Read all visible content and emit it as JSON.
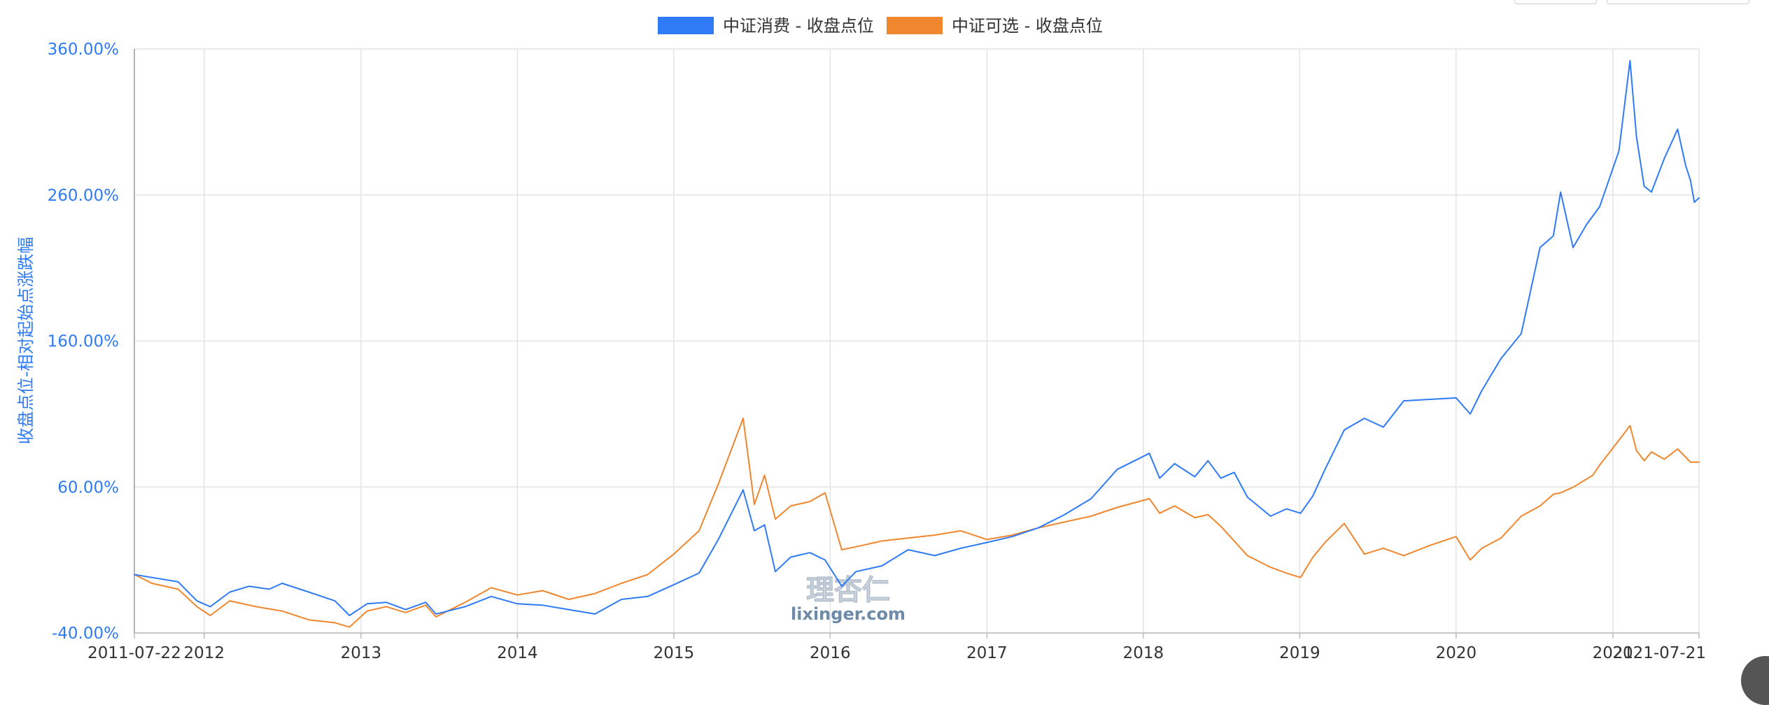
{
  "chart_data": {
    "type": "line",
    "title": "",
    "ylabel": "收盘点位-相对起始点涨跌幅",
    "xlabel": "",
    "y_unit": "%",
    "ylim": [
      -40,
      360
    ],
    "yticks": [
      "360.00%",
      "260.00%",
      "160.00%",
      "60.00%",
      "-40.00%"
    ],
    "yticks_values": [
      360,
      260,
      160,
      60,
      -40
    ],
    "x_range": [
      "2011-07-22",
      "2021-07-21"
    ],
    "xticks": [
      {
        "label": "2011-07-22",
        "date": "2011-07-22"
      },
      {
        "label": "2012",
        "date": "2012-01-01"
      },
      {
        "label": "2013",
        "date": "2013-01-01"
      },
      {
        "label": "2014",
        "date": "2014-01-01"
      },
      {
        "label": "2015",
        "date": "2015-01-01"
      },
      {
        "label": "2016",
        "date": "2016-01-01"
      },
      {
        "label": "2017",
        "date": "2017-01-01"
      },
      {
        "label": "2018",
        "date": "2018-01-01"
      },
      {
        "label": "2019",
        "date": "2019-01-01"
      },
      {
        "label": "2020",
        "date": "2020-01-01"
      },
      {
        "label": "2021",
        "date": "2021-01-01"
      },
      {
        "label": "2021-07-21",
        "date": "2021-07-21"
      }
    ],
    "grid": true,
    "legend_position": "top-center",
    "series": [
      {
        "name": "中证消费 - 收盘点位",
        "color": "#2f7bf5",
        "points": [
          [
            "2011-07-22",
            0
          ],
          [
            "2011-09-01",
            -2
          ],
          [
            "2011-11-01",
            -5
          ],
          [
            "2011-12-15",
            -18
          ],
          [
            "2012-01-15",
            -22
          ],
          [
            "2012-03-01",
            -12
          ],
          [
            "2012-04-15",
            -8
          ],
          [
            "2012-06-01",
            -10
          ],
          [
            "2012-07-01",
            -6
          ],
          [
            "2012-09-01",
            -12
          ],
          [
            "2012-11-01",
            -18
          ],
          [
            "2012-12-05",
            -28
          ],
          [
            "2013-01-15",
            -20
          ],
          [
            "2013-03-01",
            -19
          ],
          [
            "2013-04-15",
            -24
          ],
          [
            "2013-06-01",
            -19
          ],
          [
            "2013-06-25",
            -27
          ],
          [
            "2013-09-01",
            -22
          ],
          [
            "2013-11-01",
            -15
          ],
          [
            "2014-01-01",
            -20
          ],
          [
            "2014-03-01",
            -21
          ],
          [
            "2014-05-01",
            -24
          ],
          [
            "2014-07-01",
            -27
          ],
          [
            "2014-09-01",
            -17
          ],
          [
            "2014-11-01",
            -15
          ],
          [
            "2015-01-01",
            -7
          ],
          [
            "2015-03-01",
            1
          ],
          [
            "2015-04-15",
            24
          ],
          [
            "2015-06-12",
            58
          ],
          [
            "2015-07-08",
            30
          ],
          [
            "2015-08-01",
            34
          ],
          [
            "2015-08-26",
            2
          ],
          [
            "2015-10-01",
            12
          ],
          [
            "2015-11-15",
            15
          ],
          [
            "2015-12-20",
            10
          ],
          [
            "2016-01-28",
            -8
          ],
          [
            "2016-03-01",
            2
          ],
          [
            "2016-05-01",
            6
          ],
          [
            "2016-07-01",
            17
          ],
          [
            "2016-09-01",
            13
          ],
          [
            "2016-11-01",
            18
          ],
          [
            "2017-01-01",
            22
          ],
          [
            "2017-03-01",
            26
          ],
          [
            "2017-05-01",
            32
          ],
          [
            "2017-07-01",
            41
          ],
          [
            "2017-09-01",
            52
          ],
          [
            "2017-11-01",
            72
          ],
          [
            "2018-01-15",
            83
          ],
          [
            "2018-02-08",
            66
          ],
          [
            "2018-03-15",
            76
          ],
          [
            "2018-05-01",
            67
          ],
          [
            "2018-06-01",
            78
          ],
          [
            "2018-07-01",
            66
          ],
          [
            "2018-08-01",
            70
          ],
          [
            "2018-09-01",
            53
          ],
          [
            "2018-10-25",
            40
          ],
          [
            "2018-12-01",
            45
          ],
          [
            "2019-01-03",
            42
          ],
          [
            "2019-02-01",
            54
          ],
          [
            "2019-03-01",
            72
          ],
          [
            "2019-04-15",
            99
          ],
          [
            "2019-06-01",
            107
          ],
          [
            "2019-07-15",
            101
          ],
          [
            "2019-09-01",
            119
          ],
          [
            "2019-11-01",
            120
          ],
          [
            "2020-01-01",
            121
          ],
          [
            "2020-02-03",
            110
          ],
          [
            "2020-03-01",
            126
          ],
          [
            "2020-04-15",
            148
          ],
          [
            "2020-06-01",
            165
          ],
          [
            "2020-07-15",
            224
          ],
          [
            "2020-08-15",
            232
          ],
          [
            "2020-09-01",
            262
          ],
          [
            "2020-09-30",
            224
          ],
          [
            "2020-11-01",
            240
          ],
          [
            "2020-12-01",
            252
          ],
          [
            "2021-01-15",
            290
          ],
          [
            "2021-02-10",
            352
          ],
          [
            "2021-02-25",
            300
          ],
          [
            "2021-03-15",
            266
          ],
          [
            "2021-04-01",
            262
          ],
          [
            "2021-05-01",
            285
          ],
          [
            "2021-06-01",
            305
          ],
          [
            "2021-06-20",
            280
          ],
          [
            "2021-07-01",
            270
          ],
          [
            "2021-07-10",
            255
          ],
          [
            "2021-07-21",
            258
          ]
        ]
      },
      {
        "name": "中证可选 - 收盘点位",
        "color": "#f0862e",
        "points": [
          [
            "2011-07-22",
            0
          ],
          [
            "2011-09-01",
            -6
          ],
          [
            "2011-11-01",
            -10
          ],
          [
            "2011-12-15",
            -22
          ],
          [
            "2012-01-15",
            -28
          ],
          [
            "2012-03-01",
            -18
          ],
          [
            "2012-05-01",
            -22
          ],
          [
            "2012-07-01",
            -25
          ],
          [
            "2012-09-01",
            -31
          ],
          [
            "2012-11-01",
            -33
          ],
          [
            "2012-12-05",
            -36
          ],
          [
            "2013-01-15",
            -25
          ],
          [
            "2013-03-01",
            -22
          ],
          [
            "2013-04-15",
            -26
          ],
          [
            "2013-06-01",
            -21
          ],
          [
            "2013-06-25",
            -29
          ],
          [
            "2013-09-01",
            -19
          ],
          [
            "2013-11-01",
            -9
          ],
          [
            "2014-01-01",
            -14
          ],
          [
            "2014-03-01",
            -11
          ],
          [
            "2014-05-01",
            -17
          ],
          [
            "2014-07-01",
            -13
          ],
          [
            "2014-09-01",
            -6
          ],
          [
            "2014-11-01",
            0
          ],
          [
            "2015-01-01",
            14
          ],
          [
            "2015-03-01",
            30
          ],
          [
            "2015-04-15",
            62
          ],
          [
            "2015-06-12",
            107
          ],
          [
            "2015-07-08",
            48
          ],
          [
            "2015-08-01",
            68
          ],
          [
            "2015-08-26",
            38
          ],
          [
            "2015-10-01",
            47
          ],
          [
            "2015-11-15",
            50
          ],
          [
            "2015-12-20",
            56
          ],
          [
            "2016-01-28",
            17
          ],
          [
            "2016-03-01",
            19
          ],
          [
            "2016-05-01",
            23
          ],
          [
            "2016-07-01",
            25
          ],
          [
            "2016-09-01",
            27
          ],
          [
            "2016-11-01",
            30
          ],
          [
            "2017-01-01",
            24
          ],
          [
            "2017-03-01",
            27
          ],
          [
            "2017-05-01",
            32
          ],
          [
            "2017-07-01",
            36
          ],
          [
            "2017-09-01",
            40
          ],
          [
            "2017-11-01",
            46
          ],
          [
            "2018-01-15",
            52
          ],
          [
            "2018-02-08",
            42
          ],
          [
            "2018-03-15",
            47
          ],
          [
            "2018-05-01",
            39
          ],
          [
            "2018-06-01",
            41
          ],
          [
            "2018-07-01",
            33
          ],
          [
            "2018-08-01",
            23
          ],
          [
            "2018-09-01",
            13
          ],
          [
            "2018-10-25",
            5
          ],
          [
            "2018-12-01",
            1
          ],
          [
            "2019-01-03",
            -2
          ],
          [
            "2019-02-01",
            12
          ],
          [
            "2019-03-01",
            22
          ],
          [
            "2019-04-15",
            35
          ],
          [
            "2019-06-01",
            14
          ],
          [
            "2019-07-15",
            18
          ],
          [
            "2019-09-01",
            13
          ],
          [
            "2019-11-01",
            20
          ],
          [
            "2020-01-01",
            26
          ],
          [
            "2020-02-03",
            10
          ],
          [
            "2020-03-01",
            18
          ],
          [
            "2020-04-15",
            25
          ],
          [
            "2020-06-01",
            40
          ],
          [
            "2020-07-15",
            47
          ],
          [
            "2020-08-15",
            55
          ],
          [
            "2020-09-01",
            56
          ],
          [
            "2020-10-01",
            60
          ],
          [
            "2020-11-15",
            68
          ],
          [
            "2020-12-01",
            75
          ],
          [
            "2021-01-15",
            92
          ],
          [
            "2021-02-10",
            102
          ],
          [
            "2021-02-25",
            85
          ],
          [
            "2021-03-15",
            78
          ],
          [
            "2021-04-01",
            84
          ],
          [
            "2021-05-01",
            79
          ],
          [
            "2021-06-01",
            86
          ],
          [
            "2021-07-01",
            77
          ],
          [
            "2021-07-21",
            77
          ]
        ]
      }
    ]
  },
  "watermark": {
    "text_cn": "理杏仁",
    "text_en": "lixinger.com"
  }
}
